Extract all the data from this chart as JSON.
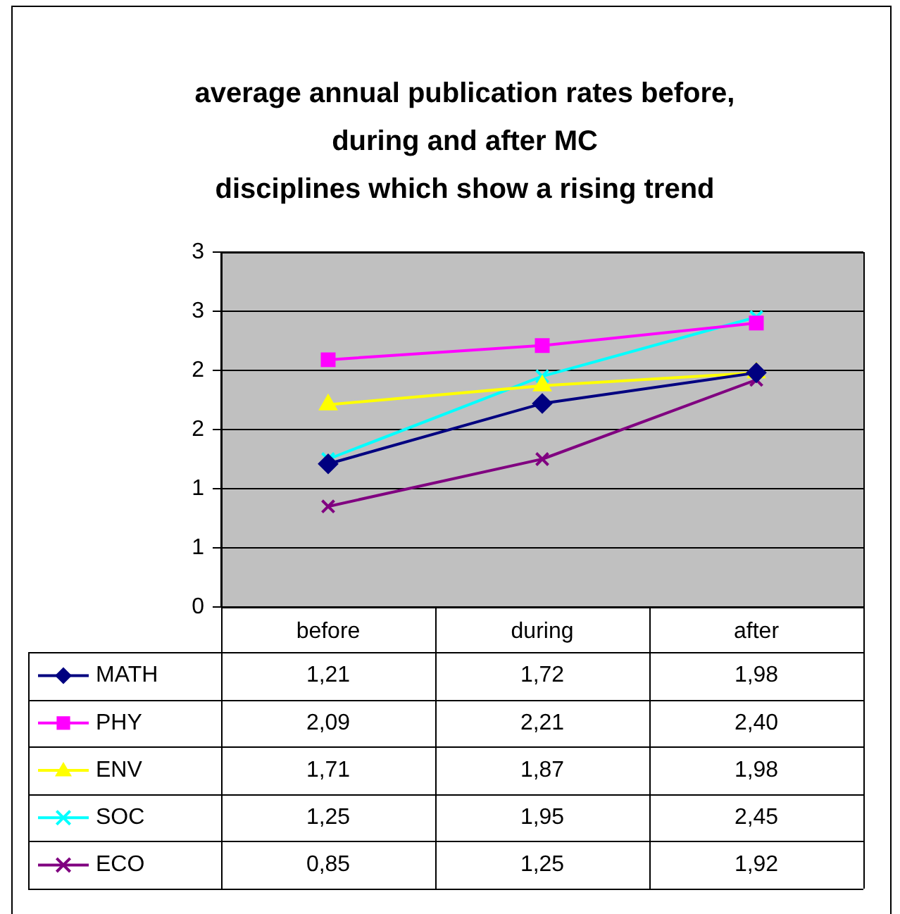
{
  "chart_data": {
    "type": "line",
    "title": "average annual publication rates before,\nduring and after MC\ndisciplines which show a rising trend",
    "categories": [
      "before",
      "during",
      "after"
    ],
    "series": [
      {
        "name": "MATH",
        "color": "#000080",
        "marker": "diamond",
        "values": [
          1.21,
          1.72,
          1.98
        ],
        "value_labels": [
          "1,21",
          "1,72",
          "1,98"
        ]
      },
      {
        "name": "PHY",
        "color": "#ff00ff",
        "marker": "square",
        "values": [
          2.09,
          2.21,
          2.4
        ],
        "value_labels": [
          "2,09",
          "2,21",
          "2,40"
        ]
      },
      {
        "name": "ENV",
        "color": "#ffff00",
        "marker": "triangle",
        "values": [
          1.71,
          1.87,
          1.98
        ],
        "value_labels": [
          "1,71",
          "1,87",
          "1,98"
        ]
      },
      {
        "name": "SOC",
        "color": "#00ffff",
        "marker": "cross",
        "values": [
          1.25,
          1.95,
          2.45
        ],
        "value_labels": [
          "1,25",
          "1,95",
          "2,45"
        ]
      },
      {
        "name": "ECO",
        "color": "#800080",
        "marker": "cross",
        "values": [
          0.85,
          1.25,
          1.92
        ],
        "value_labels": [
          "0,85",
          "1,25",
          "1,92"
        ]
      }
    ],
    "ylim": [
      0,
      3
    ],
    "yticks": [
      0,
      {
        "value": 0.5,
        "label": "1"
      },
      1,
      {
        "value": 1.5,
        "label": "2"
      },
      2,
      {
        "value": 2.5,
        "label": "3"
      },
      3
    ],
    "grid": "y",
    "legend": "bottom"
  }
}
